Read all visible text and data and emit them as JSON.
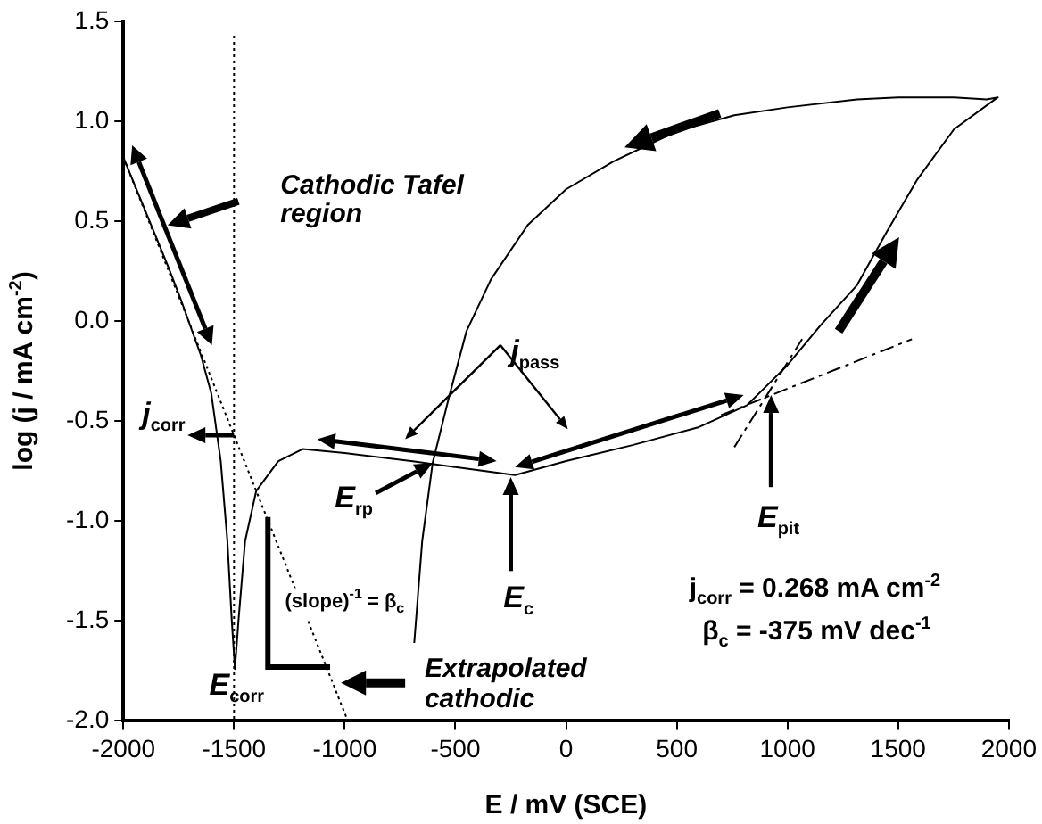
{
  "chart_data": {
    "type": "line",
    "xlabel": "E / mV (SCE)",
    "ylabel": "log (j / mA cm$^{-2}$)",
    "xlim": [
      -2000,
      2000
    ],
    "xticks": [
      -2000,
      -1500,
      -1000,
      -500,
      0,
      500,
      1000,
      1500,
      2000
    ],
    "ylim": [
      -2.0,
      1.5
    ],
    "yticks": [
      {
        "value": -2.0,
        "label": "-2.0"
      },
      -1.5,
      {
        "value": -1.0,
        "label": "-1.0"
      },
      -0.5,
      {
        "value": 0.0,
        "label": "0.0"
      },
      0.5,
      {
        "value": 1.0,
        "label": "1.0"
      },
      1.5
    ],
    "grid": false,
    "legend": false,
    "marker": "none",
    "series": [
      {
        "type": "line",
        "color": "#000000",
        "line_style": "solid",
        "x": [
          -2000,
          -1900,
          -1800,
          -1744,
          -1650,
          -1603,
          -1560,
          -1530,
          -1510,
          -1496,
          -1480,
          -1450,
          -1400,
          -1300,
          -1190,
          -1000,
          -700,
          -500,
          -231,
          0,
          300,
          600,
          818,
          900,
          1000,
          1150,
          1314,
          1450,
          1587,
          1752,
          1950,
          1900,
          1752,
          1500,
          1314,
          1000,
          760,
          500,
          215,
          0,
          -174,
          -339,
          -450,
          -529,
          -603,
          -650,
          -686
        ],
        "values": [
          0.82,
          0.55,
          0.28,
          0.12,
          -0.17,
          -0.36,
          -0.7,
          -1.1,
          -1.5,
          -1.74,
          -1.5,
          -1.1,
          -0.85,
          -0.7,
          -0.64,
          -0.66,
          -0.7,
          -0.73,
          -0.77,
          -0.7,
          -0.62,
          -0.53,
          -0.42,
          -0.33,
          -0.22,
          -0.02,
          0.18,
          0.45,
          0.71,
          0.96,
          1.12,
          1.11,
          1.12,
          1.12,
          1.11,
          1.07,
          1.03,
          0.95,
          0.8,
          0.66,
          0.48,
          0.21,
          -0.05,
          -0.38,
          -0.71,
          -1.1,
          -1.61
        ]
      },
      {
        "type": "line",
        "color": "#000000",
        "line_style": "dotted",
        "x": [
          -2000,
          -986
        ],
        "values": [
          0.82,
          -2.0
        ]
      },
      {
        "type": "line",
        "color": "#000000",
        "line_style": "dashed",
        "x": [
          700,
          1562
        ],
        "values": [
          -0.47,
          -0.09
        ]
      },
      {
        "type": "line",
        "color": "#000000",
        "line_style": "dashed",
        "x": [
          760,
          1066
        ],
        "values": [
          -0.63,
          -0.09
        ]
      }
    ],
    "ref_lines": [
      {
        "axis": "x",
        "value": -1500,
        "color": "#000000",
        "line_style": "dotted"
      }
    ],
    "annotations": [
      "Cathodic Tafel\nregion",
      "j$_{corr}$",
      "j$_{pass}$",
      "E$_{rp}$",
      "E$_{c}$",
      "E$_{corr}$",
      "(slope)$^{-1}$ = β$_{c}$",
      "Extrapolated\ncathodic",
      "E$_{pit}$",
      "j$_{corr}$ = 0.268 mA cm$^{-2}$",
      "β$_{c}$ = -375 mV dec$^{-1}$"
    ]
  }
}
